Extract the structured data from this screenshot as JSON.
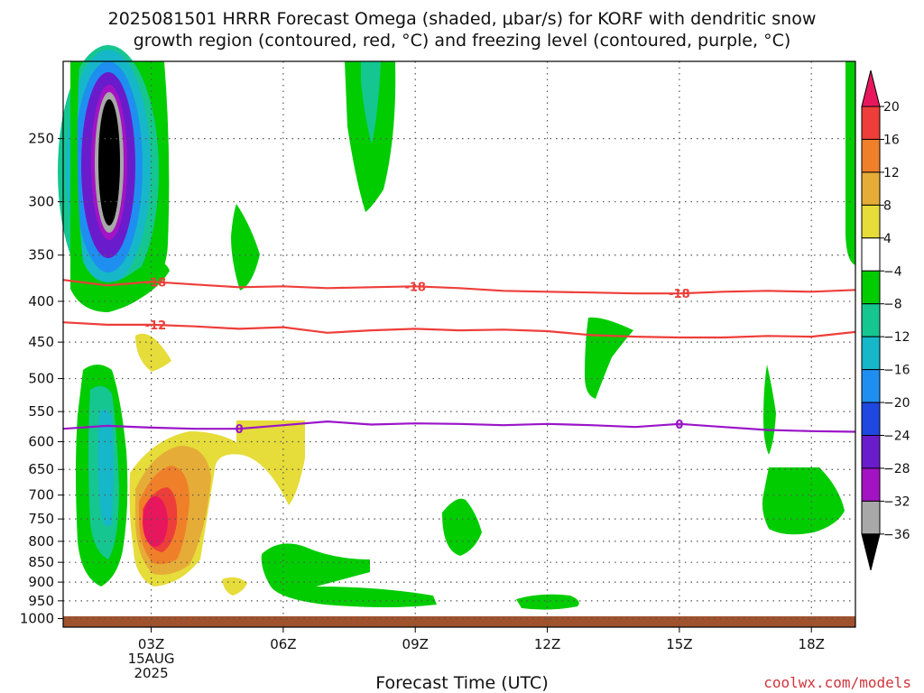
{
  "page": {
    "title_line1": "2025081501 HRRR Forecast Omega (shaded, μbar/s) for KORF with dendritic snow",
    "title_line2": "growth region (contoured, red, °C) and freezing level (contoured, purple, °C)",
    "credit": "coolwx.com/models"
  },
  "chart_data": {
    "type": "heatmap",
    "xlabel": "Forecast Time (UTC)",
    "ylabel": "",
    "x_range_hours_utc": [
      1,
      19
    ],
    "y_range_mb": [
      200,
      1025
    ],
    "y_scale": "pressure (log)",
    "grid": true,
    "x_ticks": [
      {
        "hour": 3,
        "label": "03Z",
        "sub1": "15AUG",
        "sub2": "2025"
      },
      {
        "hour": 6,
        "label": "06Z",
        "sub1": "",
        "sub2": ""
      },
      {
        "hour": 9,
        "label": "09Z",
        "sub1": "",
        "sub2": ""
      },
      {
        "hour": 12,
        "label": "12Z",
        "sub1": "",
        "sub2": ""
      },
      {
        "hour": 15,
        "label": "15Z",
        "sub1": "",
        "sub2": ""
      },
      {
        "hour": 18,
        "label": "18Z",
        "sub1": "",
        "sub2": ""
      }
    ],
    "y_ticks": [
      250,
      300,
      350,
      400,
      450,
      500,
      550,
      600,
      650,
      700,
      750,
      800,
      850,
      900,
      950,
      1000
    ],
    "colorbar": {
      "levels": [
        {
          "value": 20,
          "label": "20"
        },
        {
          "value": 16,
          "label": "16"
        },
        {
          "value": 12,
          "label": "12"
        },
        {
          "value": 8,
          "label": "8"
        },
        {
          "value": 4,
          "label": "4"
        },
        {
          "value": -4,
          "label": "−4"
        },
        {
          "value": -8,
          "label": "−8"
        },
        {
          "value": -12,
          "label": "−12"
        },
        {
          "value": -16,
          "label": "−16"
        },
        {
          "value": -20,
          "label": "−20"
        },
        {
          "value": -24,
          "label": "−24"
        },
        {
          "value": -28,
          "label": "−28"
        },
        {
          "value": -32,
          "label": "−32"
        },
        {
          "value": -36,
          "label": "−36"
        }
      ],
      "colors_top_to_bottom": [
        "#e8175d",
        "#ee3e3a",
        "#f07f2a",
        "#e5ac37",
        "#e6dc3a",
        "#ffffff",
        "#00cc00",
        "#16c690",
        "#16b7c8",
        "#1e8ff0",
        "#1f48e0",
        "#6a1ccc",
        "#a313c4",
        "#a8a8a8",
        "#000000"
      ]
    },
    "temperature_contours": [
      {
        "value": -18,
        "label": "-18",
        "color": "#ee3e3a",
        "points": [
          [
            1,
            376
          ],
          [
            2,
            382
          ],
          [
            3,
            378
          ],
          [
            4,
            381
          ],
          [
            5,
            384
          ],
          [
            6,
            383
          ],
          [
            7,
            385
          ],
          [
            8,
            384
          ],
          [
            9,
            383
          ],
          [
            10,
            385
          ],
          [
            11,
            388
          ],
          [
            12,
            389
          ],
          [
            13,
            390
          ],
          [
            14,
            391
          ],
          [
            15,
            391
          ],
          [
            16,
            389
          ],
          [
            17,
            388
          ],
          [
            18,
            389
          ],
          [
            19,
            387
          ]
        ],
        "label_hours": [
          3.1,
          9,
          15
        ]
      },
      {
        "value": -12,
        "label": "-12",
        "color": "#ee3e3a",
        "points": [
          [
            1,
            425
          ],
          [
            2,
            428
          ],
          [
            3,
            428
          ],
          [
            4,
            430
          ],
          [
            5,
            433
          ],
          [
            6,
            431
          ],
          [
            7,
            438
          ],
          [
            8,
            435
          ],
          [
            9,
            433
          ],
          [
            10,
            435
          ],
          [
            11,
            434
          ],
          [
            12,
            436
          ],
          [
            13,
            441
          ],
          [
            14,
            443
          ],
          [
            15,
            444
          ],
          [
            16,
            444
          ],
          [
            17,
            442
          ],
          [
            18,
            443
          ],
          [
            19,
            437
          ]
        ],
        "label_hours": [
          3.1
        ]
      },
      {
        "value": 0,
        "label": "0",
        "color": "#9a14c8",
        "points": [
          [
            1,
            578
          ],
          [
            2,
            573
          ],
          [
            3,
            576
          ],
          [
            4,
            578
          ],
          [
            5,
            578
          ],
          [
            6,
            572
          ],
          [
            7,
            566
          ],
          [
            8,
            571
          ],
          [
            9,
            569
          ],
          [
            10,
            570
          ],
          [
            11,
            572
          ],
          [
            12,
            570
          ],
          [
            13,
            572
          ],
          [
            14,
            575
          ],
          [
            15,
            570
          ],
          [
            16,
            575
          ],
          [
            17,
            580
          ],
          [
            18,
            582
          ],
          [
            19,
            583
          ]
        ],
        "label_hours": [
          5,
          15
        ]
      }
    ]
  }
}
